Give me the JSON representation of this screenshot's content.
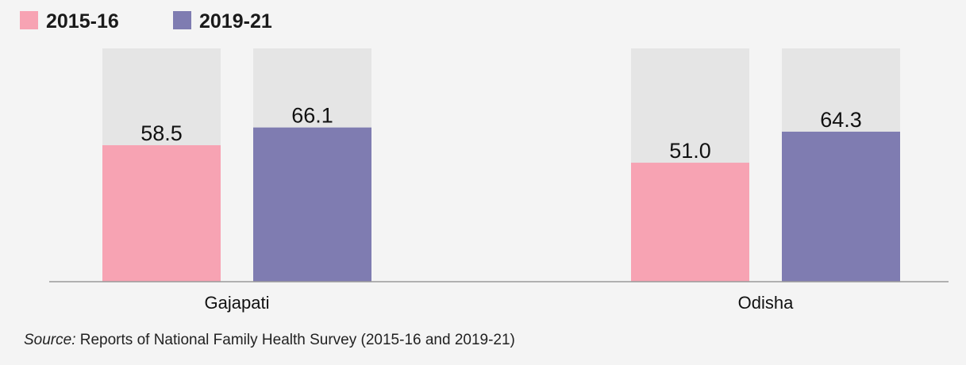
{
  "chart_data": {
    "type": "bar",
    "categories": [
      "Gajapati",
      "Odisha"
    ],
    "series": [
      {
        "name": "2015-16",
        "values": [
          58.5,
          51.0
        ],
        "color": "#f7a3b3"
      },
      {
        "name": "2019-21",
        "values": [
          66.1,
          64.3
        ],
        "color": "#7f7cb1"
      }
    ],
    "value_labels": [
      [
        "58.5",
        "51.0"
      ],
      [
        "66.1",
        "64.3"
      ]
    ],
    "ylim": [
      0,
      100
    ],
    "background_bar_color": "#e5e5e5",
    "legend_position": "top-left",
    "grid": false
  },
  "source": {
    "label": "Source:",
    "text": " Reports of National Family Health Survey (2015-16 and 2019-21)"
  }
}
